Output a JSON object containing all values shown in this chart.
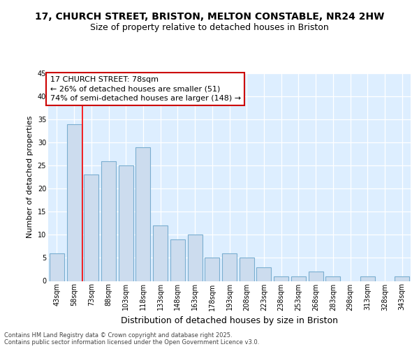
{
  "title": "17, CHURCH STREET, BRISTON, MELTON CONSTABLE, NR24 2HW",
  "subtitle": "Size of property relative to detached houses in Briston",
  "xlabel": "Distribution of detached houses by size in Briston",
  "ylabel": "Number of detached properties",
  "categories": [
    "43sqm",
    "58sqm",
    "73sqm",
    "88sqm",
    "103sqm",
    "118sqm",
    "133sqm",
    "148sqm",
    "163sqm",
    "178sqm",
    "193sqm",
    "208sqm",
    "223sqm",
    "238sqm",
    "253sqm",
    "268sqm",
    "283sqm",
    "298sqm",
    "313sqm",
    "328sqm",
    "343sqm"
  ],
  "values": [
    6,
    34,
    23,
    26,
    25,
    29,
    12,
    9,
    10,
    5,
    6,
    5,
    3,
    1,
    1,
    2,
    1,
    0,
    1,
    0,
    1
  ],
  "bar_color": "#ccdcee",
  "bar_edge_color": "#7aaed0",
  "redline_x": 1.5,
  "annotation_text": "17 CHURCH STREET: 78sqm\n← 26% of detached houses are smaller (51)\n74% of semi-detached houses are larger (148) →",
  "annotation_box_facecolor": "#ffffff",
  "annotation_box_edgecolor": "#cc0000",
  "ylim": [
    0,
    45
  ],
  "yticks": [
    0,
    5,
    10,
    15,
    20,
    25,
    30,
    35,
    40,
    45
  ],
  "plot_bg_color": "#ddeeff",
  "footer_text": "Contains HM Land Registry data © Crown copyright and database right 2025.\nContains public sector information licensed under the Open Government Licence v3.0.",
  "title_fontsize": 10,
  "subtitle_fontsize": 9,
  "tick_fontsize": 7,
  "ylabel_fontsize": 8,
  "xlabel_fontsize": 9,
  "annotation_fontsize": 8,
  "footer_fontsize": 6
}
